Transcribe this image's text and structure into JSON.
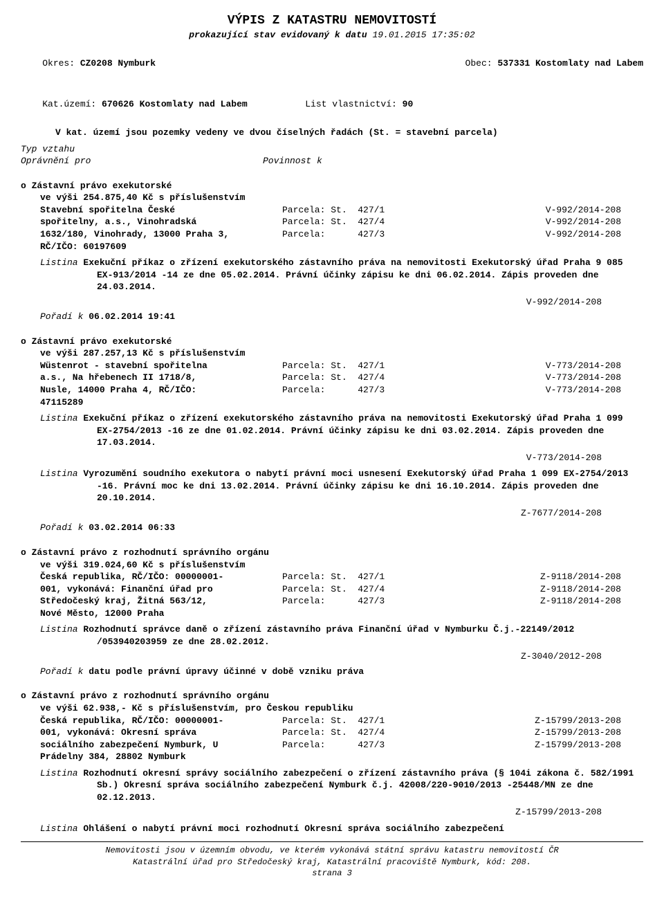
{
  "header": {
    "title": "VÝPIS Z KATASTRU NEMOVITOSTÍ",
    "subtitle_prefix": "prokazující stav evidovaný k datu ",
    "subtitle_date": "19.01.2015 17:35:02",
    "okres_label": "Okres: ",
    "okres_value": "CZ0208 Nymburk",
    "obec_label": "Obec: ",
    "obec_value": "537331 Kostomlaty nad Labem",
    "katuzemi_label": "Kat.území: ",
    "katuzemi_value": "670626 Kostomlaty nad Labem",
    "list_label": "List vlastnictví: ",
    "list_value": "90",
    "note_line": "V kat. území jsou pozemky vedeny ve dvou číselných řadách  (St. = stavební parcela)",
    "typ_vztahu": "Typ vztahu",
    "opravneni": "Oprávnění pro",
    "povinnost": "Povinnost k"
  },
  "entries": [
    {
      "bullet": "o",
      "title": "Zástavní právo exekutorské",
      "amount": "ve výši 254.875,40 Kč s příslušenstvím",
      "left": "Stavební spořitelna České\nspořitelny, a.s., Vinohradská\n1632/180, Vinohrady, 13000 Praha 3,\nRČ/IČO: 60197609",
      "parcels": [
        {
          "p": "Parcela: St.  427/1",
          "r": "V-992/2014-208"
        },
        {
          "p": "Parcela: St.  427/4",
          "r": "V-992/2014-208"
        },
        {
          "p": "Parcela:      427/3",
          "r": "V-992/2014-208"
        }
      ],
      "listiny": [
        {
          "text": "Exekuční příkaz o zřízení exekutorského zástavního práva na nemovitosti Exekutorský úřad Praha 9 085 EX-913/2014 -14 ze dne 05.02.2014. Právní účinky zápisu ke dni 06.02.2014. Zápis proveden dne 24.03.2014.",
          "ref": "V-992/2014-208"
        }
      ],
      "poradi_label": "Pořadí k ",
      "poradi_value": "06.02.2014 19:41"
    },
    {
      "bullet": "o",
      "title": "Zástavní právo exekutorské",
      "amount": "ve výši 287.257,13 Kč s příslušenstvím",
      "left": "Wüstenrot - stavební spořitelna\na.s., Na hřebenech II 1718/8,\nNusle, 14000 Praha 4, RČ/IČO:\n47115289",
      "parcels": [
        {
          "p": "Parcela: St.  427/1",
          "r": "V-773/2014-208"
        },
        {
          "p": "Parcela: St.  427/4",
          "r": "V-773/2014-208"
        },
        {
          "p": "Parcela:      427/3",
          "r": "V-773/2014-208"
        }
      ],
      "listiny": [
        {
          "text": "Exekuční příkaz o zřízení exekutorského zástavního práva na nemovitosti Exekutorský úřad Praha 1 099 EX-2754/2013 -16 ze dne 01.02.2014. Právní účinky zápisu ke dni 03.02.2014. Zápis proveden dne 17.03.2014.",
          "ref": "V-773/2014-208"
        },
        {
          "text": "Vyrozumění soudního exekutora o nabytí právní moci usnesení Exekutorský úřad Praha 1 099 EX-2754/2013 -16. Právní moc ke dni 13.02.2014. Právní účinky zápisu ke dni 16.10.2014. Zápis proveden dne 20.10.2014.",
          "ref": "Z-7677/2014-208"
        }
      ],
      "poradi_label": "Pořadí k ",
      "poradi_value": "03.02.2014 06:33"
    },
    {
      "bullet": "o",
      "title": "Zástavní právo z rozhodnutí správního orgánu",
      "amount": "ve výši 319.024,60 Kč s příslušenstvím",
      "left": "Česká republika, RČ/IČO: 00000001-\n001, vykonává: Finanční úřad pro\nStředočeský kraj, Žitná 563/12,\nNové Město, 12000 Praha",
      "parcels": [
        {
          "p": "Parcela: St.  427/1",
          "r": "Z-9118/2014-208"
        },
        {
          "p": "Parcela: St.  427/4",
          "r": "Z-9118/2014-208"
        },
        {
          "p": "Parcela:      427/3",
          "r": "Z-9118/2014-208"
        }
      ],
      "listiny": [
        {
          "text": "Rozhodnutí správce daně o zřízení zástavního práva Finanční úřad v Nymburku Č.j.-22149/2012 /053940203959 ze dne 28.02.2012.",
          "ref": "Z-3040/2012-208"
        }
      ],
      "poradi_label": "Pořadí k ",
      "poradi_value": "datu podle právní úpravy účinné v době vzniku práva"
    },
    {
      "bullet": "o",
      "title": "Zástavní právo z rozhodnutí správního orgánu",
      "amount": "ve výši 62.938,- Kč s příslušenstvím, pro Českou republiku",
      "left": "Česká republika, RČ/IČO: 00000001-\n001, vykonává: Okresní správa\nsociálního zabezpečení Nymburk, U\nPrádelny 384, 28802 Nymburk",
      "parcels": [
        {
          "p": "Parcela: St.  427/1",
          "r": "Z-15799/2013-208"
        },
        {
          "p": "Parcela: St.  427/4",
          "r": "Z-15799/2013-208"
        },
        {
          "p": "Parcela:      427/3",
          "r": "Z-15799/2013-208"
        }
      ],
      "listiny": [
        {
          "text": "Rozhodnutí okresní správy sociálního zabezpečení o zřízení zástavního práva (§ 104i zákona č. 582/1991 Sb.) Okresní správa sociálního zabezpečení Nymburk č.j. 42008/220-9010/2013 -25448/MN ze dne 02.12.2013.",
          "ref": "Z-15799/2013-208"
        },
        {
          "text": "Ohlášení o nabytí právní moci rozhodnutí Okresní správa sociálního zabezpečení",
          "ref": null
        }
      ],
      "poradi_label": null,
      "poradi_value": null
    }
  ],
  "footer": {
    "line1": "Nemovitosti jsou v územním obvodu, ve kterém vykonává státní správu katastru nemovitostí ČR",
    "line2": "Katastrální úřad pro Středočeský kraj, Katastrální pracoviště Nymburk, kód: 208.",
    "page": "strana 3"
  },
  "labels": {
    "listina": "Listina "
  }
}
